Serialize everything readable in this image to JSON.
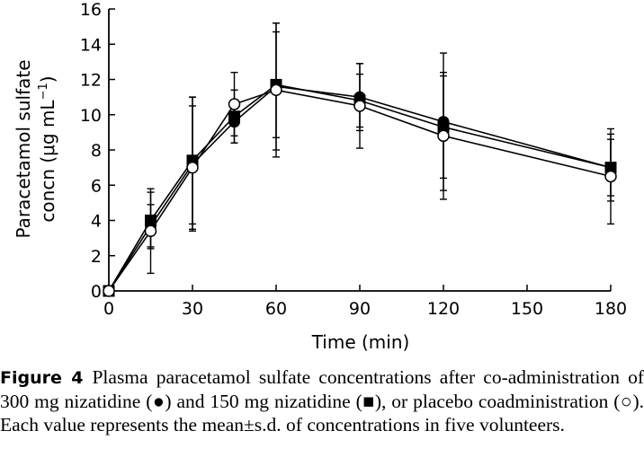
{
  "chart_data": {
    "type": "line",
    "xlabel": "Time (min)",
    "ylabel_line1": "Paracetamol sulfate",
    "ylabel_line2": "concn (μg mL",
    "ylabel_sup": "−1",
    "ylabel_end": ")",
    "xlim": [
      0,
      180
    ],
    "ylim": [
      0,
      16
    ],
    "x_ticks": [
      0,
      30,
      60,
      90,
      120,
      150,
      180
    ],
    "y_ticks": [
      0,
      2,
      4,
      6,
      8,
      10,
      12,
      14,
      16
    ],
    "x": [
      0,
      15,
      30,
      45,
      60,
      90,
      120,
      180
    ],
    "series": [
      {
        "marker": "filled-circle",
        "values": [
          0,
          3.7,
          7.2,
          9.6,
          11.6,
          11.0,
          9.6,
          7.0
        ],
        "sd": [
          0,
          1.2,
          3.8,
          1.2,
          3.6,
          1.9,
          3.9,
          1.6
        ]
      },
      {
        "marker": "filled-square",
        "values": [
          0,
          4.0,
          7.4,
          9.9,
          11.7,
          10.8,
          9.3,
          7.0
        ],
        "sd": [
          0,
          1.6,
          3.6,
          1.5,
          3.0,
          1.5,
          2.9,
          1.9
        ]
      },
      {
        "marker": "open-circle",
        "values": [
          0,
          3.4,
          7.0,
          10.6,
          11.4,
          10.5,
          8.8,
          6.5
        ],
        "sd": [
          0,
          2.4,
          3.5,
          1.8,
          3.8,
          2.4,
          3.6,
          2.7
        ]
      }
    ]
  },
  "caption": {
    "label": "Figure 4",
    "text_before_circle": "Plasma paracetamol sulfate concentrations after co-administration of 300 mg nizatidine (",
    "filled_circle_glyph": "●",
    "text_between_1": ") and 150 mg nizatidine (",
    "filled_square_glyph": "■",
    "text_between_2": "), or placebo coadministration (",
    "open_circle_glyph": "○",
    "text_after": "). Each value represents the mean±s.d. of concentrations in five volunteers."
  }
}
